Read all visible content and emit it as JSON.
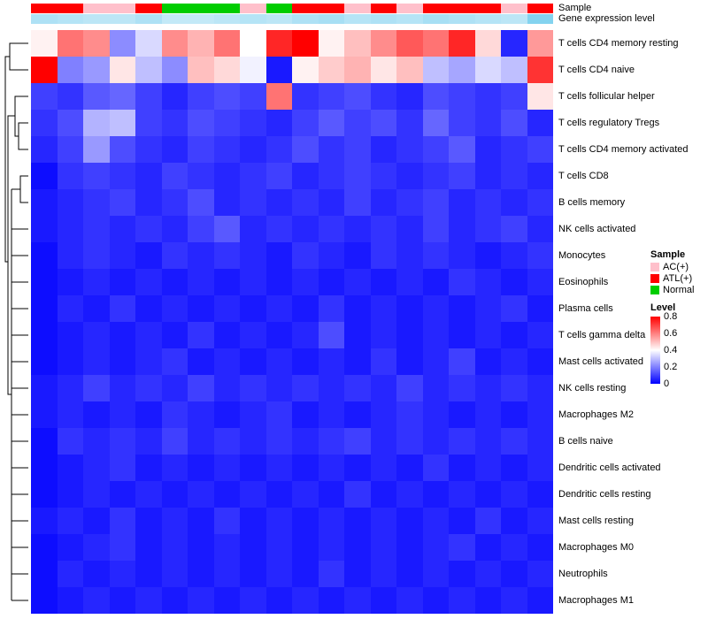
{
  "annotations": {
    "sample_label": "Sample",
    "expression_label": "Gene expression level"
  },
  "legend": {
    "sample_title": "Sample",
    "sample_items": [
      {
        "label": "AC(+)",
        "color": "#FFC0CB"
      },
      {
        "label": "ATL(+)",
        "color": "#FF0000"
      },
      {
        "label": "Normal",
        "color": "#00CD00"
      }
    ],
    "level_title": "Level",
    "level_ticks": [
      "0.8",
      "0.6",
      "0.4",
      "0.2",
      "0"
    ]
  },
  "chart_data": {
    "type": "heatmap",
    "title": "",
    "n_columns": 20,
    "rows": [
      "T cells CD4 memory resting",
      "T cells CD4 naive",
      "T cells follicular helper",
      "T cells regulatory  Tregs",
      "T cells CD4 memory activated",
      "T cells CD8",
      "B cells memory",
      "NK cells activated",
      "Monocytes",
      "Eosinophils",
      "Plasma cells",
      "T cells gamma delta",
      "Mast cells activated",
      "NK cells resting",
      "Macrophages M2",
      "B cells naive",
      "Dendritic cells activated",
      "Dendritic cells resting",
      "Mast cells resting",
      "Macrophages M0",
      "Neutrophils",
      "Macrophages M1"
    ],
    "value_range": [
      0,
      0.8
    ],
    "colormap": {
      "low": "#0000FF",
      "mid": "#FFFFFF",
      "high": "#FF0000",
      "mid_at": 0.4
    },
    "values": [
      [
        0.42,
        0.62,
        0.58,
        0.22,
        0.34,
        0.58,
        0.52,
        0.62,
        0.4,
        0.74,
        0.8,
        0.42,
        0.5,
        0.58,
        0.66,
        0.62,
        0.74,
        0.46,
        0.06,
        0.56
      ],
      [
        0.8,
        0.2,
        0.24,
        0.44,
        0.3,
        0.22,
        0.5,
        0.46,
        0.38,
        0.04,
        0.42,
        0.48,
        0.52,
        0.44,
        0.5,
        0.3,
        0.26,
        0.34,
        0.3,
        0.72
      ],
      [
        0.1,
        0.08,
        0.14,
        0.16,
        0.1,
        0.06,
        0.1,
        0.12,
        0.1,
        0.62,
        0.08,
        0.1,
        0.12,
        0.08,
        0.06,
        0.12,
        0.1,
        0.08,
        0.1,
        0.44
      ],
      [
        0.08,
        0.12,
        0.28,
        0.3,
        0.1,
        0.08,
        0.12,
        0.1,
        0.08,
        0.06,
        0.1,
        0.14,
        0.1,
        0.12,
        0.08,
        0.16,
        0.1,
        0.08,
        0.12,
        0.06
      ],
      [
        0.06,
        0.1,
        0.24,
        0.12,
        0.08,
        0.06,
        0.1,
        0.08,
        0.06,
        0.08,
        0.12,
        0.08,
        0.1,
        0.06,
        0.08,
        0.1,
        0.14,
        0.06,
        0.08,
        0.1
      ],
      [
        0.02,
        0.08,
        0.1,
        0.08,
        0.06,
        0.1,
        0.08,
        0.06,
        0.08,
        0.1,
        0.06,
        0.08,
        0.1,
        0.08,
        0.06,
        0.08,
        0.1,
        0.06,
        0.08,
        0.06
      ],
      [
        0.04,
        0.06,
        0.08,
        0.1,
        0.06,
        0.08,
        0.12,
        0.06,
        0.08,
        0.06,
        0.08,
        0.06,
        0.1,
        0.06,
        0.08,
        0.1,
        0.06,
        0.08,
        0.06,
        0.08
      ],
      [
        0.04,
        0.06,
        0.08,
        0.06,
        0.08,
        0.06,
        0.1,
        0.14,
        0.06,
        0.08,
        0.06,
        0.08,
        0.06,
        0.08,
        0.06,
        0.1,
        0.06,
        0.08,
        0.1,
        0.06
      ],
      [
        0.02,
        0.06,
        0.08,
        0.06,
        0.04,
        0.08,
        0.06,
        0.08,
        0.06,
        0.04,
        0.08,
        0.06,
        0.04,
        0.08,
        0.06,
        0.08,
        0.06,
        0.04,
        0.06,
        0.08
      ],
      [
        0.02,
        0.04,
        0.06,
        0.04,
        0.06,
        0.04,
        0.06,
        0.04,
        0.06,
        0.04,
        0.06,
        0.04,
        0.06,
        0.04,
        0.06,
        0.04,
        0.08,
        0.06,
        0.04,
        0.06
      ],
      [
        0.02,
        0.06,
        0.04,
        0.08,
        0.04,
        0.06,
        0.04,
        0.06,
        0.04,
        0.06,
        0.04,
        0.08,
        0.04,
        0.06,
        0.04,
        0.06,
        0.04,
        0.06,
        0.08,
        0.04
      ],
      [
        0.02,
        0.04,
        0.06,
        0.04,
        0.06,
        0.04,
        0.08,
        0.04,
        0.06,
        0.04,
        0.06,
        0.12,
        0.04,
        0.06,
        0.04,
        0.06,
        0.04,
        0.06,
        0.04,
        0.06
      ],
      [
        0.02,
        0.04,
        0.06,
        0.04,
        0.06,
        0.08,
        0.04,
        0.06,
        0.04,
        0.06,
        0.04,
        0.06,
        0.04,
        0.08,
        0.04,
        0.06,
        0.1,
        0.04,
        0.06,
        0.04
      ],
      [
        0.04,
        0.06,
        0.1,
        0.06,
        0.08,
        0.06,
        0.1,
        0.06,
        0.08,
        0.06,
        0.08,
        0.06,
        0.08,
        0.06,
        0.1,
        0.06,
        0.08,
        0.06,
        0.08,
        0.06
      ],
      [
        0.04,
        0.06,
        0.04,
        0.06,
        0.04,
        0.08,
        0.06,
        0.04,
        0.06,
        0.08,
        0.04,
        0.06,
        0.04,
        0.06,
        0.08,
        0.06,
        0.04,
        0.06,
        0.04,
        0.06
      ],
      [
        0.02,
        0.08,
        0.06,
        0.08,
        0.06,
        0.1,
        0.06,
        0.08,
        0.06,
        0.08,
        0.06,
        0.08,
        0.1,
        0.06,
        0.08,
        0.06,
        0.08,
        0.06,
        0.08,
        0.06
      ],
      [
        0.02,
        0.04,
        0.06,
        0.08,
        0.04,
        0.06,
        0.04,
        0.06,
        0.04,
        0.06,
        0.04,
        0.06,
        0.04,
        0.06,
        0.04,
        0.08,
        0.04,
        0.06,
        0.04,
        0.06
      ],
      [
        0.02,
        0.04,
        0.06,
        0.04,
        0.06,
        0.04,
        0.06,
        0.04,
        0.06,
        0.04,
        0.06,
        0.04,
        0.08,
        0.04,
        0.06,
        0.04,
        0.06,
        0.04,
        0.06,
        0.04
      ],
      [
        0.04,
        0.06,
        0.04,
        0.08,
        0.04,
        0.06,
        0.04,
        0.08,
        0.04,
        0.06,
        0.04,
        0.06,
        0.04,
        0.06,
        0.04,
        0.06,
        0.04,
        0.08,
        0.04,
        0.06
      ],
      [
        0.02,
        0.04,
        0.06,
        0.08,
        0.04,
        0.06,
        0.04,
        0.06,
        0.04,
        0.06,
        0.04,
        0.06,
        0.04,
        0.06,
        0.04,
        0.06,
        0.08,
        0.04,
        0.06,
        0.04
      ],
      [
        0.02,
        0.06,
        0.04,
        0.06,
        0.04,
        0.06,
        0.04,
        0.06,
        0.04,
        0.06,
        0.04,
        0.08,
        0.04,
        0.06,
        0.04,
        0.06,
        0.04,
        0.06,
        0.04,
        0.06
      ],
      [
        0.02,
        0.04,
        0.06,
        0.04,
        0.06,
        0.04,
        0.06,
        0.04,
        0.06,
        0.04,
        0.06,
        0.04,
        0.06,
        0.04,
        0.06,
        0.04,
        0.06,
        0.04,
        0.06,
        0.04
      ]
    ],
    "column_annotations": {
      "sample": [
        "ATL(+)",
        "ATL(+)",
        "AC(+)",
        "AC(+)",
        "ATL(+)",
        "Normal",
        "Normal",
        "Normal",
        "AC(+)",
        "Normal",
        "ATL(+)",
        "ATL(+)",
        "AC(+)",
        "ATL(+)",
        "AC(+)",
        "ATL(+)",
        "ATL(+)",
        "ATL(+)",
        "AC(+)",
        "ATL(+)"
      ],
      "gene_expression_level": [
        0.3,
        0.25,
        0.2,
        0.2,
        0.3,
        0.15,
        0.15,
        0.2,
        0.25,
        0.2,
        0.3,
        0.35,
        0.25,
        0.3,
        0.25,
        0.35,
        0.3,
        0.25,
        0.2,
        0.6
      ]
    },
    "sample_colors": {
      "AC(+)": "#FFC0CB",
      "ATL(+)": "#FF0000",
      "Normal": "#00CD00"
    },
    "expression_scale": {
      "low": "#D9F0FA",
      "high": "#49BFE8"
    },
    "legend_position": "right",
    "grid": false
  }
}
